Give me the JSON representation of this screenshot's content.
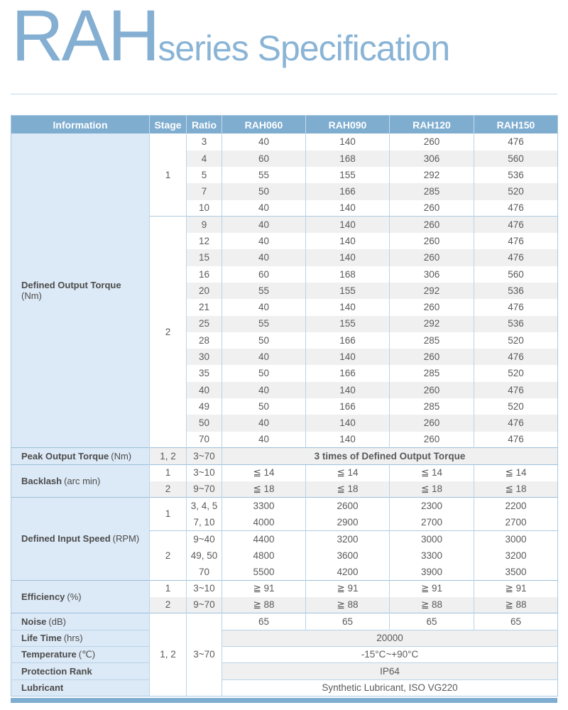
{
  "page": {
    "title_brand": "RAH",
    "title_subtitle": "series Specification"
  },
  "colors": {
    "title_text": "#84AFD2",
    "header_bg": "#7EADD0",
    "header_text": "#FFFFFF",
    "info_column_bg": "#DCE9F6",
    "stripe_bg": "#F0F0F0",
    "border": "#B9D4E8",
    "section_border": "#9CC0DB",
    "value_text": "#5A5A5B",
    "footer_bar_bg": "#7EADD0"
  },
  "table": {
    "headers": [
      "Information",
      "Stage",
      "Ratio",
      "RAH060",
      "RAH090",
      "RAH120",
      "RAH150"
    ],
    "sections": [
      {
        "id": "defined-output-torque",
        "type": "grouped",
        "label": "Defined Output Torque",
        "suffix": "(Nm)",
        "suffix_on_new_line": true,
        "striped": true,
        "groups": [
          {
            "stage": "1",
            "rows": [
              {
                "ratio": "3",
                "values": [
                  "40",
                  "140",
                  "260",
                  "476"
                ]
              },
              {
                "ratio": "4",
                "values": [
                  "60",
                  "168",
                  "306",
                  "560"
                ]
              },
              {
                "ratio": "5",
                "values": [
                  "55",
                  "155",
                  "292",
                  "536"
                ]
              },
              {
                "ratio": "7",
                "values": [
                  "50",
                  "166",
                  "285",
                  "520"
                ]
              },
              {
                "ratio": "10",
                "values": [
                  "40",
                  "140",
                  "260",
                  "476"
                ]
              }
            ]
          },
          {
            "stage": "2",
            "rows": [
              {
                "ratio": "9",
                "values": [
                  "40",
                  "140",
                  "260",
                  "476"
                ]
              },
              {
                "ratio": "12",
                "values": [
                  "40",
                  "140",
                  "260",
                  "476"
                ]
              },
              {
                "ratio": "15",
                "values": [
                  "40",
                  "140",
                  "260",
                  "476"
                ]
              },
              {
                "ratio": "16",
                "values": [
                  "60",
                  "168",
                  "306",
                  "560"
                ]
              },
              {
                "ratio": "20",
                "values": [
                  "55",
                  "155",
                  "292",
                  "536"
                ]
              },
              {
                "ratio": "21",
                "values": [
                  "40",
                  "140",
                  "260",
                  "476"
                ]
              },
              {
                "ratio": "25",
                "values": [
                  "55",
                  "155",
                  "292",
                  "536"
                ]
              },
              {
                "ratio": "28",
                "values": [
                  "50",
                  "166",
                  "285",
                  "520"
                ]
              },
              {
                "ratio": "30",
                "values": [
                  "40",
                  "140",
                  "260",
                  "476"
                ]
              },
              {
                "ratio": "35",
                "values": [
                  "50",
                  "166",
                  "285",
                  "520"
                ]
              },
              {
                "ratio": "40",
                "values": [
                  "40",
                  "140",
                  "260",
                  "476"
                ]
              },
              {
                "ratio": "49",
                "values": [
                  "50",
                  "166",
                  "285",
                  "520"
                ]
              },
              {
                "ratio": "50",
                "values": [
                  "40",
                  "140",
                  "260",
                  "476"
                ]
              },
              {
                "ratio": "70",
                "values": [
                  "40",
                  "140",
                  "260",
                  "476"
                ]
              }
            ]
          }
        ]
      },
      {
        "id": "peak-output-torque",
        "type": "span",
        "label": "Peak Output Torque",
        "suffix": "(Nm)",
        "stage": "1, 2",
        "ratio": "3~70",
        "value": "3 times of Defined Output Torque",
        "bold_value": true
      },
      {
        "id": "backlash",
        "type": "rows",
        "label": "Backlash",
        "suffix": "(arc min)",
        "rows": [
          {
            "stage": "1",
            "ratio": "3~10",
            "values": [
              "≦ 14",
              "≦ 14",
              "≦ 14",
              "≦ 14"
            ]
          },
          {
            "stage": "2",
            "ratio": "9~70",
            "values": [
              "≦ 18",
              "≦ 18",
              "≦ 18",
              "≦ 18"
            ]
          }
        ]
      },
      {
        "id": "defined-input-speed",
        "type": "grouped",
        "label": "Defined Input Speed",
        "suffix": "(RPM)",
        "suffix_on_new_line": false,
        "striped": false,
        "groups": [
          {
            "stage": "1",
            "rows": [
              {
                "ratio": "3, 4, 5",
                "values": [
                  "3300",
                  "2600",
                  "2300",
                  "2200"
                ]
              },
              {
                "ratio": "7, 10",
                "values": [
                  "4000",
                  "2900",
                  "2700",
                  "2700"
                ]
              }
            ]
          },
          {
            "stage": "2",
            "rows": [
              {
                "ratio": "9~40",
                "values": [
                  "4400",
                  "3200",
                  "3000",
                  "3000"
                ]
              },
              {
                "ratio": "49, 50",
                "values": [
                  "4800",
                  "3600",
                  "3300",
                  "3200"
                ]
              },
              {
                "ratio": "70",
                "values": [
                  "5500",
                  "4200",
                  "3900",
                  "3500"
                ]
              }
            ]
          }
        ]
      },
      {
        "id": "efficiency",
        "type": "rows",
        "label": "Efficiency",
        "suffix": "(%)",
        "rows": [
          {
            "stage": "1",
            "ratio": "3~10",
            "values": [
              "≧ 91",
              "≧ 91",
              "≧ 91",
              "≧ 91"
            ]
          },
          {
            "stage": "2",
            "ratio": "9~70",
            "values": [
              "≧ 88",
              "≧ 88",
              "≧ 88",
              "≧ 88"
            ]
          }
        ]
      },
      {
        "id": "general",
        "type": "block",
        "stage": "1, 2",
        "ratio": "3~70",
        "rows": [
          {
            "label": "Noise",
            "suffix": "(dB)",
            "values": [
              "65",
              "65",
              "65",
              "65"
            ]
          },
          {
            "label": "Life Time",
            "suffix": "(hrs)",
            "value": "20000"
          },
          {
            "label": "Temperature",
            "suffix": "(℃)",
            "value": "-15°C~+90°C"
          },
          {
            "label": "Protection Rank",
            "suffix": "",
            "value": "IP64"
          },
          {
            "label": "Lubricant",
            "suffix": "",
            "value": "Synthetic Lubricant, ISO VG220"
          }
        ]
      }
    ]
  }
}
